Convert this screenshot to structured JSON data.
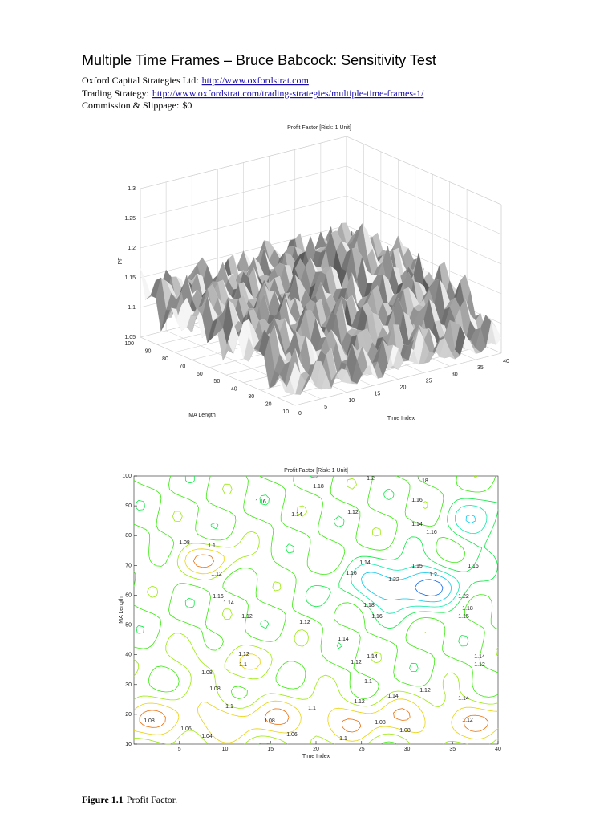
{
  "header": {
    "title": "Multiple Time Frames – Bruce Babcock: Sensitivity Test",
    "lines": [
      {
        "label": "Oxford Capital Strategies Ltd:",
        "link": "http://www.oxfordstrat.com"
      },
      {
        "label": "Trading Strategy:",
        "link": "http://www.oxfordstrat.com/trading-strategies/multiple-time-frames-1/"
      },
      {
        "label": "Commission & Slippage:",
        "value": "$0"
      }
    ]
  },
  "chart_data": [
    {
      "type": "surface",
      "title": "Profit Factor [Risk: 1 Unit]",
      "x_label": "Time Index",
      "y_label": "MA Length",
      "z_label": "PF",
      "xlim": [
        0,
        40
      ],
      "xticks": [
        0,
        5,
        10,
        15,
        20,
        25,
        30,
        35,
        40
      ],
      "ylim": [
        10,
        100
      ],
      "yticks": [
        10,
        20,
        30,
        40,
        50,
        60,
        70,
        80,
        90,
        100
      ],
      "zlim": [
        1.05,
        1.3
      ],
      "zticks": [
        1.05,
        1.1,
        1.15,
        1.2,
        1.25,
        1.3
      ],
      "grid": true
    },
    {
      "type": "contour",
      "title": "Profit Factor [Risk: 1 Unit]",
      "x_label": "Time Index",
      "y_label": "MA Length",
      "xlim": [
        0,
        40
      ],
      "xticks": [
        5,
        10,
        15,
        20,
        25,
        30,
        35,
        40
      ],
      "ylim": [
        10,
        100
      ],
      "yticks": [
        10,
        20,
        30,
        40,
        50,
        60,
        70,
        80,
        90,
        100
      ],
      "contour_labels": [
        1.2,
        1.18,
        1.18,
        1.16,
        1.16,
        1.14,
        1.14,
        1.12,
        1.08,
        1.1,
        1.16,
        1.14,
        1.16,
        1.22,
        1.2,
        1.15,
        1.16,
        1.12,
        1.16,
        1.14,
        1.22,
        1.18,
        1.18,
        1.16,
        1.15,
        1.12,
        1.12,
        1.14,
        1.12,
        1.1,
        1.14,
        1.12,
        1.14,
        1.12,
        1.1,
        1.12,
        1.14,
        1.14,
        1.12,
        1.08,
        1.08,
        1.1,
        1.1,
        1.08,
        1.08,
        1.06,
        1.08,
        1.12,
        1.1,
        1.04,
        1.06,
        1.08
      ]
    }
  ],
  "caption": {
    "label": "Figure 1.1",
    "text": "Profit Factor."
  }
}
